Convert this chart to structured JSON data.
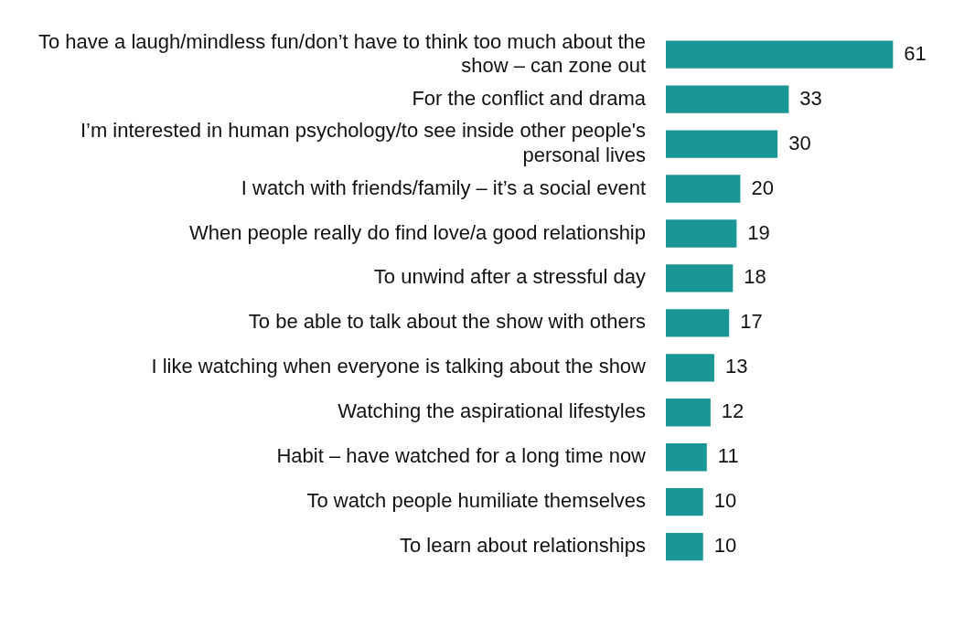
{
  "chart_data": {
    "type": "bar",
    "orientation": "horizontal",
    "categories": [
      "To have a laugh/mindless fun/don’t have to think too much about the show – can zone out",
      "For the conflict and drama",
      "I’m interested in human psychology/to see inside other people's personal lives",
      "I watch with friends/family – it’s a social event",
      "When people really do find love/a good relationship",
      "To unwind after a stressful day",
      "To be able to talk about the show with others",
      "I like watching when everyone is talking about the show",
      "Watching the aspirational lifestyles",
      "Habit – have watched for a long time now",
      "To watch people humiliate themselves",
      "To learn about relationships"
    ],
    "values": [
      61,
      33,
      30,
      20,
      19,
      18,
      17,
      13,
      12,
      11,
      10,
      10
    ],
    "color": "#1a9696",
    "data_labels": true
  }
}
